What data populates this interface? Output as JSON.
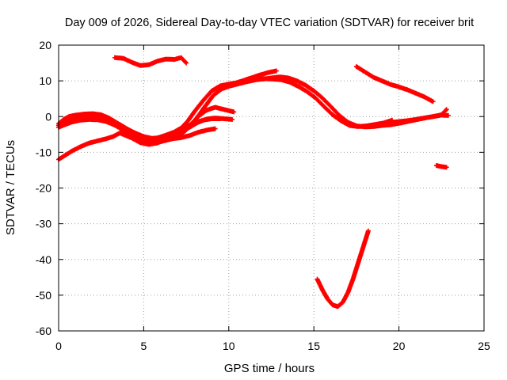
{
  "chart_data": {
    "type": "scatter",
    "title": "Day 009 of 2026, Sidereal Day-to-day VTEC variation (SDTVAR) for receiver brit",
    "xlabel": "GPS time / hours",
    "ylabel": "SDTVAR / TECUs",
    "xlim": [
      0,
      25
    ],
    "ylim": [
      -60,
      20
    ],
    "xticks": [
      0,
      5,
      10,
      15,
      20,
      25
    ],
    "yticks": [
      -60,
      -50,
      -40,
      -30,
      -20,
      -10,
      0,
      10,
      20
    ],
    "grid": true,
    "legend": "none",
    "series_color": "#ff0000",
    "series": [
      {
        "name": "track-1",
        "x": [
          3.3,
          3.8,
          4.3,
          4.8,
          5.3,
          5.8,
          6.3,
          6.8,
          7.2,
          7.5
        ],
        "y": [
          16.5,
          16.3,
          15.2,
          14.3,
          14.5,
          15.5,
          16.1,
          16.0,
          16.5,
          15.0
        ]
      },
      {
        "name": "track-2",
        "x": [
          0.0,
          0.3,
          0.7,
          1.2,
          1.7,
          2.2,
          2.7,
          3.2,
          3.7,
          4.2,
          4.7,
          5.2,
          5.7,
          6.2,
          6.7,
          7.2,
          7.7,
          8.2,
          8.7,
          9.2,
          9.7,
          10.2
        ],
        "y": [
          -2.5,
          -1.6,
          -0.8,
          -0.3,
          0.0,
          0.2,
          -0.2,
          -1.2,
          -2.5,
          -4.0,
          -5.5,
          -6.6,
          -6.8,
          -6.2,
          -5.2,
          -4.2,
          -3.0,
          -1.6,
          -0.7,
          -0.4,
          -0.6,
          -0.8
        ]
      },
      {
        "name": "track-3",
        "x": [
          0.0,
          0.4,
          0.8,
          1.3,
          1.8,
          2.3,
          2.8,
          3.3,
          3.8,
          4.3,
          4.8,
          5.2,
          5.7,
          6.2,
          6.7,
          7.2,
          7.7,
          8.2,
          8.7,
          9.2
        ],
        "y": [
          -3.0,
          -2.2,
          -1.5,
          -1.0,
          -0.8,
          -0.9,
          -1.4,
          -2.4,
          -3.8,
          -5.3,
          -6.6,
          -7.6,
          -7.4,
          -6.8,
          -6.2,
          -5.9,
          -5.3,
          -4.4,
          -3.8,
          -3.4
        ]
      },
      {
        "name": "track-4",
        "x": [
          0.0,
          0.3,
          0.6,
          1.0,
          1.5,
          2.0,
          2.5,
          3.0,
          3.5,
          4.0,
          4.5,
          5.0,
          5.5,
          6.0,
          6.5,
          7.0,
          7.5,
          8.0,
          8.5,
          9.0,
          9.5
        ],
        "y": [
          -2.0,
          -0.8,
          0.0,
          0.4,
          0.7,
          0.8,
          0.5,
          -0.5,
          -2.0,
          -3.4,
          -4.6,
          -5.6,
          -6.1,
          -5.9,
          -5.0,
          -4.0,
          -2.8,
          -1.7,
          -1.0,
          -0.6,
          -0.6
        ]
      },
      {
        "name": "track-5",
        "x": [
          0.0,
          0.4,
          0.8,
          1.3,
          1.8,
          2.3,
          2.8,
          3.2,
          3.6
        ],
        "y": [
          -12.0,
          -10.8,
          -9.6,
          -8.4,
          -7.4,
          -6.8,
          -6.2,
          -5.6,
          -4.6
        ]
      },
      {
        "name": "track-6",
        "x": [
          3.6,
          4.3,
          4.8,
          5.3,
          5.8,
          6.3,
          6.8,
          7.3,
          7.7,
          8.2,
          8.7,
          9.2,
          9.7,
          10.3
        ],
        "y": [
          -4.6,
          -6.0,
          -7.3,
          -7.8,
          -7.4,
          -6.3,
          -5.4,
          -4.6,
          -2.8,
          0.0,
          1.8,
          2.6,
          2.0,
          1.3
        ]
      },
      {
        "name": "track-7",
        "x": [
          5.2,
          5.8,
          6.3,
          6.8,
          7.2,
          7.6,
          8.0,
          8.5,
          9.0,
          9.5,
          10.0,
          10.4,
          10.8,
          11.3,
          11.8,
          12.3,
          12.8
        ],
        "y": [
          -7.0,
          -6.0,
          -5.2,
          -4.3,
          -3.2,
          -1.2,
          1.5,
          4.5,
          7.2,
          8.6,
          9.1,
          9.4,
          10.0,
          10.8,
          11.6,
          12.3,
          12.8
        ]
      },
      {
        "name": "track-8",
        "x": [
          7.7,
          8.1,
          8.6,
          9.1,
          9.6,
          10.1,
          10.6,
          11.1,
          11.6,
          12.1,
          12.6,
          13.1,
          13.6,
          14.1,
          14.6,
          15.1,
          15.6,
          16.1,
          16.6,
          17.1,
          17.6,
          18.1,
          18.6,
          19.1,
          19.6
        ],
        "y": [
          -2.5,
          -0.5,
          2.8,
          6.0,
          7.8,
          8.6,
          9.2,
          9.8,
          10.3,
          10.6,
          10.5,
          10.3,
          9.6,
          8.4,
          7.0,
          5.2,
          2.8,
          0.5,
          -1.2,
          -2.5,
          -2.8,
          -2.6,
          -2.2,
          -1.8,
          -1.0
        ]
      },
      {
        "name": "track-9",
        "x": [
          12.0,
          12.5,
          13.0,
          13.5,
          14.0,
          14.5,
          15.0,
          15.5,
          16.0,
          16.5,
          17.0,
          17.5,
          18.0,
          18.5,
          19.0,
          19.5,
          20.0,
          20.5,
          21.0,
          21.5,
          22.0,
          22.5,
          22.9
        ],
        "y": [
          10.5,
          10.8,
          11.1,
          10.8,
          10.0,
          8.8,
          7.2,
          5.2,
          2.8,
          0.3,
          -1.6,
          -2.6,
          -2.9,
          -2.8,
          -2.5,
          -2.3,
          -1.9,
          -1.4,
          -0.9,
          -0.4,
          0.0,
          0.4,
          0.3
        ]
      },
      {
        "name": "track-10",
        "x": [
          17.5,
          18.0,
          18.5,
          19.0,
          19.5,
          20.0,
          20.5,
          21.0,
          21.5,
          22.0
        ],
        "y": [
          14.0,
          12.5,
          11.0,
          10.0,
          9.0,
          8.3,
          7.5,
          6.5,
          5.5,
          4.2
        ]
      },
      {
        "name": "track-11",
        "x": [
          19.2,
          19.8,
          20.4,
          21.0,
          21.5,
          22.0,
          22.5,
          22.8
        ],
        "y": [
          -2.0,
          -1.5,
          -1.2,
          -0.8,
          -0.4,
          0.0,
          0.5,
          2.0
        ]
      },
      {
        "name": "track-12",
        "x": [
          22.2,
          22.5,
          22.8
        ],
        "y": [
          -13.7,
          -14.0,
          -14.2
        ]
      },
      {
        "name": "track-13",
        "x": [
          15.2,
          15.5,
          15.8,
          16.1,
          16.4,
          16.7,
          17.0,
          17.3,
          17.6,
          17.9,
          18.2
        ],
        "y": [
          -45.5,
          -48.5,
          -51.0,
          -52.7,
          -53.2,
          -52.0,
          -49.3,
          -45.5,
          -41.0,
          -36.5,
          -32.0
        ]
      }
    ]
  }
}
